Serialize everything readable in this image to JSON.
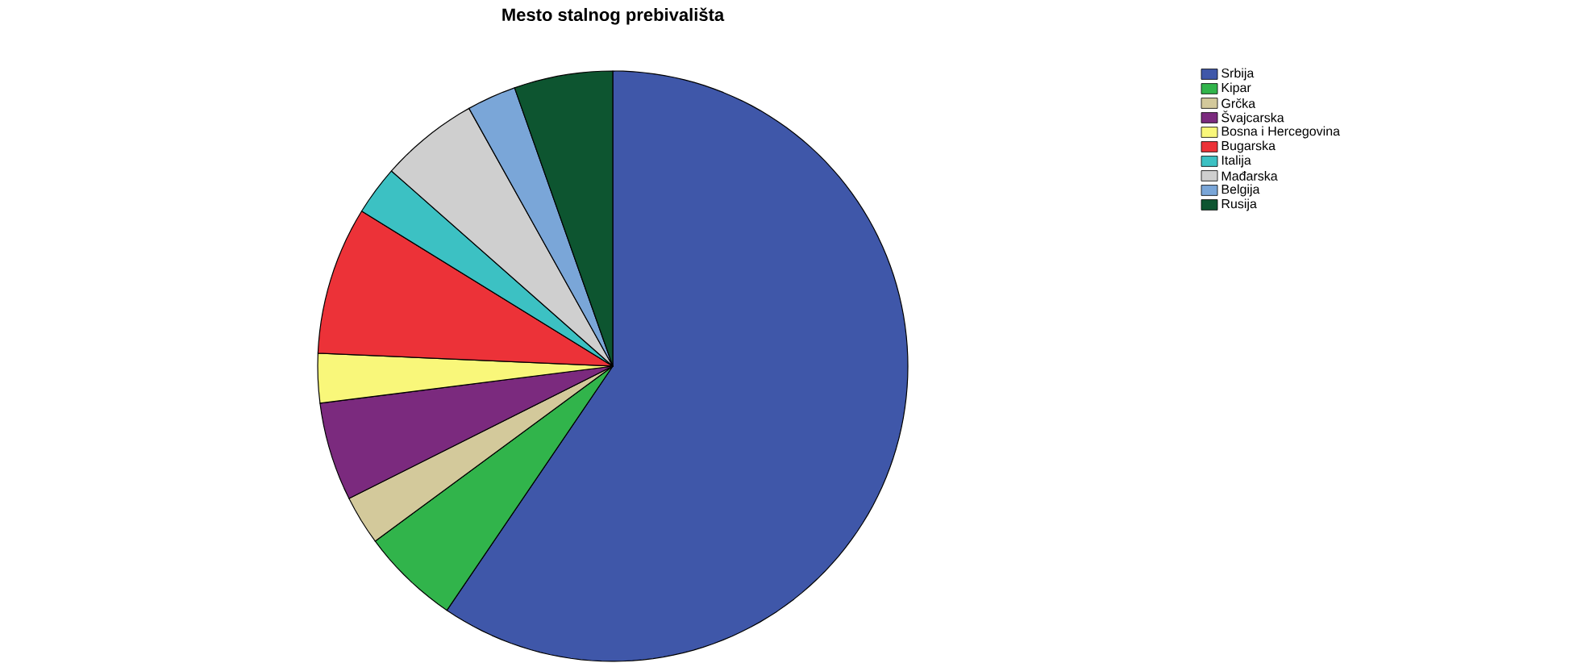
{
  "chart_data": {
    "type": "pie",
    "title": "Mesto stalnog prebivališta",
    "categories": [
      "Srbija",
      "Kipar",
      "Grčka",
      "Švajcarska",
      "Bosna i Hercegovina",
      "Bugarska",
      "Italija",
      "Mađarska",
      "Belgija",
      "Rusija"
    ],
    "values": [
      59.5,
      5.4,
      2.7,
      5.4,
      2.7,
      8.1,
      2.7,
      5.4,
      2.7,
      5.4
    ],
    "colors": [
      "#3f57a9",
      "#31b44b",
      "#d3c99b",
      "#7b2a7e",
      "#f9f77a",
      "#ec3238",
      "#3cc1c3",
      "#cfcfcf",
      "#7aa6d8",
      "#0d5530"
    ],
    "legend": "top right"
  }
}
